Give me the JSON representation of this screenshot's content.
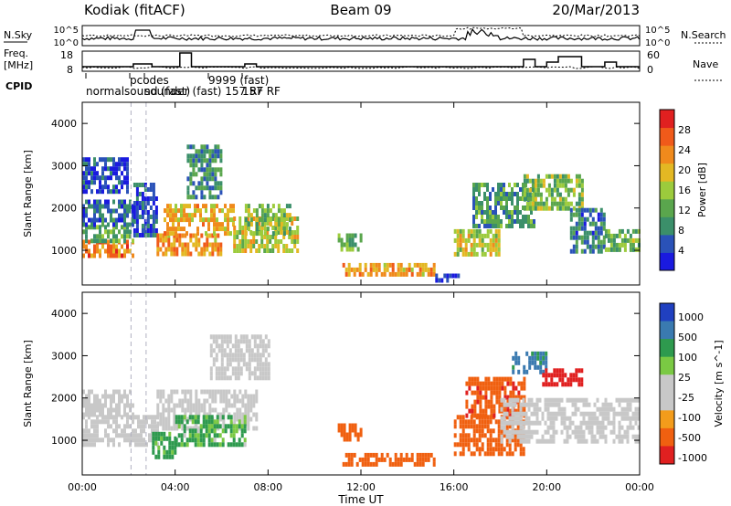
{
  "header": {
    "station": "Kodiak (fitACF)",
    "beam": "Beam 09",
    "date": "20/Mar/2013"
  },
  "strips": {
    "nsky_label": "N.Sky",
    "nsky_ticks": [
      "10^5",
      "10^0"
    ],
    "nsearch_label": "N.Search",
    "nsearch_ticks": [
      "10^5",
      "10^0"
    ],
    "freq_label_1": "Freq.",
    "freq_label_2": "[MHz]",
    "freq_ticks": [
      "18",
      "8"
    ],
    "nave_label": "Nave",
    "nave_ticks": [
      "60",
      "0"
    ],
    "cpid_label": "CPID",
    "cpid_entries": [
      "normalsound (fast)",
      "pcodes",
      "sounder (fast) 157 RF",
      "9999 (fast)",
      "157 RF"
    ]
  },
  "colors": {
    "power_scale": [
      "#1a1adf",
      "#2a52b8",
      "#3b8f6a",
      "#5aa64d",
      "#9ccb3c",
      "#e3b823",
      "#f08a1c",
      "#f05a1a",
      "#e02020"
    ],
    "velocity_scale": [
      "#2040c0",
      "#3a7ab0",
      "#2e9a4e",
      "#7ac943",
      "#c8c8c8",
      "#c8c8c8",
      "#f39c1b",
      "#f06010",
      "#e02020"
    ],
    "ground": "#c8c8c8"
  },
  "chart_data": [
    {
      "type": "heatmap",
      "panel": "power",
      "ylabel": "Slant Range [km]",
      "yticks": [
        "1000",
        "2000",
        "3000",
        "4000"
      ],
      "ylim": [
        180,
        4500
      ],
      "xlim": [
        0,
        24
      ],
      "legend_label": "Power [dB]",
      "colorbar_ticks": [
        "4",
        "8",
        "12",
        "16",
        "20",
        "24",
        "28"
      ],
      "colorbar_range": [
        0,
        32
      ],
      "patches": [
        {
          "t": [
            0.0,
            2.2
          ],
          "r": [
            850,
            1250
          ],
          "v": 24
        },
        {
          "t": [
            0.0,
            2.2
          ],
          "r": [
            1250,
            1600
          ],
          "v": 12
        },
        {
          "t": [
            0.0,
            2.2
          ],
          "r": [
            1600,
            2200
          ],
          "v": 6
        },
        {
          "t": [
            0.0,
            2.0
          ],
          "r": [
            2400,
            3200
          ],
          "v": 4
        },
        {
          "t": [
            2.2,
            3.2
          ],
          "r": [
            1400,
            2600
          ],
          "v": 5
        },
        {
          "t": [
            3.2,
            6.0
          ],
          "r": [
            900,
            1400
          ],
          "v": 22
        },
        {
          "t": [
            3.5,
            6.5
          ],
          "r": [
            1400,
            2100
          ],
          "v": 20
        },
        {
          "t": [
            4.5,
            6.0
          ],
          "r": [
            2300,
            3500
          ],
          "v": 9
        },
        {
          "t": [
            6.5,
            9.3
          ],
          "r": [
            1000,
            1800
          ],
          "v": 18
        },
        {
          "t": [
            7.0,
            9.0
          ],
          "r": [
            1400,
            2100
          ],
          "v": 14
        },
        {
          "t": [
            11.0,
            12.0
          ],
          "r": [
            1050,
            1400
          ],
          "v": 12
        },
        {
          "t": [
            11.2,
            15.2
          ],
          "r": [
            450,
            700
          ],
          "v": 22
        },
        {
          "t": [
            15.2,
            16.2
          ],
          "r": [
            250,
            450
          ],
          "v": 4
        },
        {
          "t": [
            16.0,
            18.0
          ],
          "r": [
            900,
            1500
          ],
          "v": 18
        },
        {
          "t": [
            16.8,
            19.5
          ],
          "r": [
            1600,
            2600
          ],
          "v": 10
        },
        {
          "t": [
            19.0,
            21.5
          ],
          "r": [
            2000,
            2800
          ],
          "v": 14
        },
        {
          "t": [
            21.0,
            22.5
          ],
          "r": [
            1000,
            2000
          ],
          "v": 8
        },
        {
          "t": [
            22.5,
            24.0
          ],
          "r": [
            1000,
            1500
          ],
          "v": 13
        }
      ]
    },
    {
      "type": "heatmap",
      "panel": "velocity",
      "ylabel": "Slant Range [km]",
      "yticks": [
        "1000",
        "2000",
        "3000",
        "4000"
      ],
      "ylim": [
        180,
        4500
      ],
      "xlim": [
        0,
        24
      ],
      "xlabel": "Time UT",
      "xticks": [
        "00:00",
        "04:00",
        "08:00",
        "12:00",
        "16:00",
        "20:00",
        "00:00"
      ],
      "legend_label": "Velocity [m s^-1]",
      "colorbar_ticks": [
        "1000",
        "500",
        "100",
        "25",
        "-25",
        "-100",
        "-500",
        "-1000"
      ],
      "patches": [
        {
          "t": [
            0.0,
            3.2
          ],
          "r": [
            850,
            1600
          ],
          "v": 0
        },
        {
          "t": [
            0.0,
            2.2
          ],
          "r": [
            1600,
            2200
          ],
          "v": 0
        },
        {
          "t": [
            3.2,
            7.5
          ],
          "r": [
            1300,
            2200
          ],
          "v": 0
        },
        {
          "t": [
            4.0,
            7.0
          ],
          "r": [
            900,
            1600
          ],
          "v": 150
        },
        {
          "t": [
            3.0,
            4.0
          ],
          "r": [
            600,
            1200
          ],
          "v": 200
        },
        {
          "t": [
            5.5,
            8.0
          ],
          "r": [
            2500,
            3500
          ],
          "v": 0
        },
        {
          "t": [
            11.0,
            12.0
          ],
          "r": [
            1000,
            1400
          ],
          "v": -300
        },
        {
          "t": [
            11.2,
            15.2
          ],
          "r": [
            450,
            700
          ],
          "v": -300
        },
        {
          "t": [
            16.0,
            19.0
          ],
          "r": [
            700,
            1600
          ],
          "v": -300
        },
        {
          "t": [
            16.5,
            19.0
          ],
          "r": [
            1600,
            2500
          ],
          "v": -400
        },
        {
          "t": [
            18.5,
            20.0
          ],
          "r": [
            2600,
            3100
          ],
          "v": 600
        },
        {
          "t": [
            19.8,
            21.5
          ],
          "r": [
            2300,
            2700
          ],
          "v": -800
        },
        {
          "t": [
            18.0,
            24.0
          ],
          "r": [
            1000,
            2000
          ],
          "v": 0
        }
      ]
    }
  ]
}
